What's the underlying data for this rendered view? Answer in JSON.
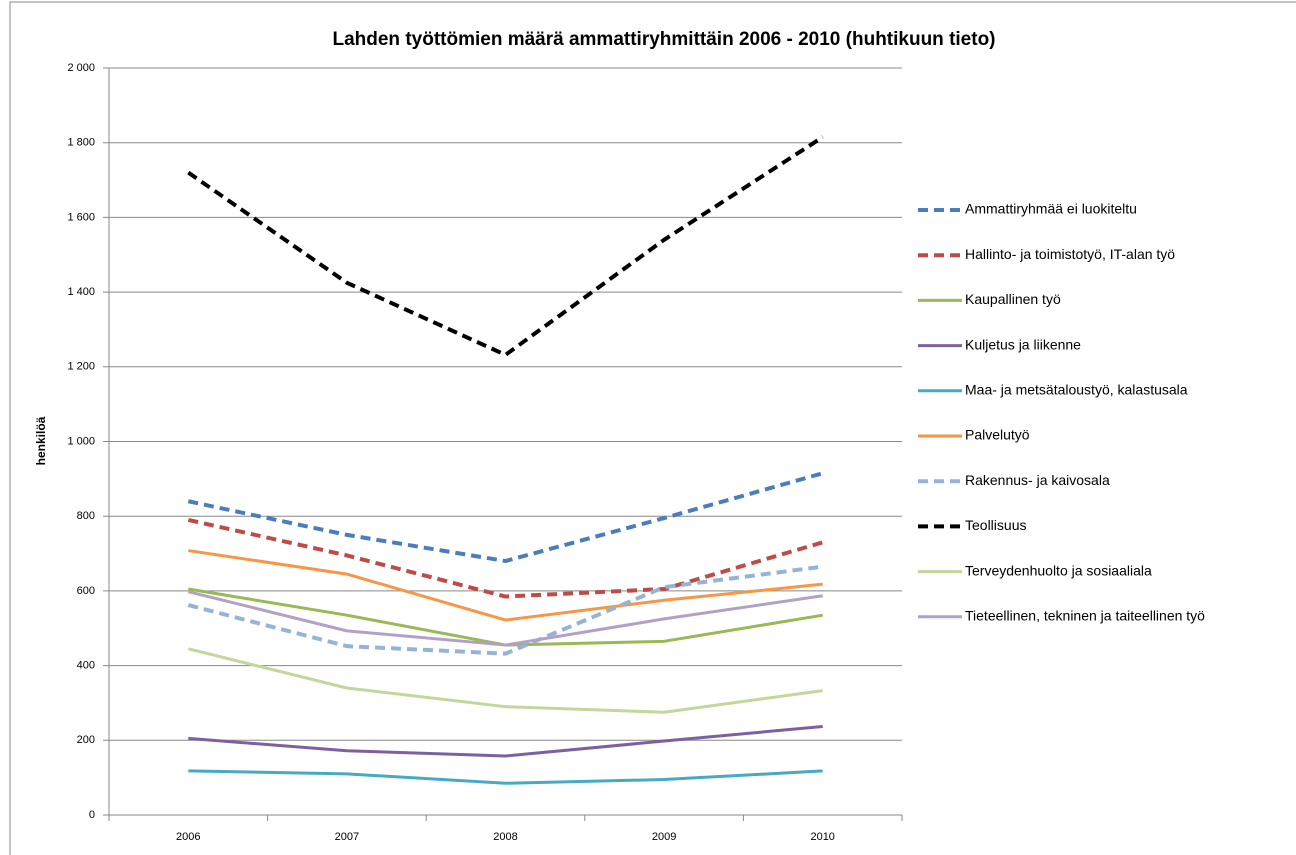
{
  "chart_data": {
    "type": "line",
    "title": "Lahden työttömien määrä ammattiryhmittäin 2006 - 2010 (huhtikuun tieto)",
    "y_label": "henkilöä",
    "categories": [
      "2006",
      "2007",
      "2008",
      "2009",
      "2010"
    ],
    "ylim": [
      0,
      2000
    ],
    "yticks": [
      0,
      200,
      400,
      600,
      800,
      {
        "value": 1000,
        "label": "1 000"
      },
      {
        "value": 1200,
        "label": "1 200"
      },
      {
        "value": 1400,
        "label": "1 400"
      },
      {
        "value": 1600,
        "label": "1 600"
      },
      {
        "value": 1800,
        "label": "1 800"
      },
      {
        "value": 2000,
        "label": "2 000"
      }
    ],
    "grid": true,
    "legend": "right",
    "series": [
      {
        "name": "Ammattiryhmää ei luokiteltu",
        "color": "#4a7ebb",
        "dashed": true,
        "values": [
          840,
          750,
          680,
          795,
          915
        ]
      },
      {
        "name": "Hallinto- ja toimistotyö, IT-alan työ",
        "color": "#be4b48",
        "dashed": true,
        "values": [
          790,
          695,
          585,
          605,
          730
        ]
      },
      {
        "name": "Kaupallinen työ",
        "color": "#98b954",
        "dashed": false,
        "values": [
          605,
          535,
          455,
          465,
          535
        ]
      },
      {
        "name": "Kuljetus ja liikenne",
        "color": "#7d60a0",
        "dashed": false,
        "values": [
          205,
          172,
          158,
          198,
          237
        ]
      },
      {
        "name": "Maa- ja metsätaloustyö, kalastusala",
        "color": "#46aac5",
        "dashed": false,
        "values": [
          118,
          110,
          85,
          95,
          118
        ]
      },
      {
        "name": "Palvelutyö",
        "color": "#f79646",
        "dashed": false,
        "values": [
          708,
          645,
          522,
          575,
          618
        ]
      },
      {
        "name": "Rakennus- ja kaivosala",
        "color": "#95b3d7",
        "dashed": true,
        "values": [
          562,
          452,
          432,
          610,
          665
        ]
      },
      {
        "name": "Teollisuus",
        "color": "#000000",
        "dashed": true,
        "values": [
          1720,
          1425,
          1232,
          1540,
          1815
        ]
      },
      {
        "name": "Terveydenhuolto ja sosiaaliala",
        "color": "#c3d69b",
        "dashed": false,
        "values": [
          445,
          340,
          290,
          275,
          333
        ]
      },
      {
        "name": "Tieteellinen, tekninen ja taiteellinen työ",
        "color": "#b2a1c7",
        "dashed": false,
        "values": [
          598,
          493,
          455,
          525,
          587
        ]
      }
    ]
  }
}
